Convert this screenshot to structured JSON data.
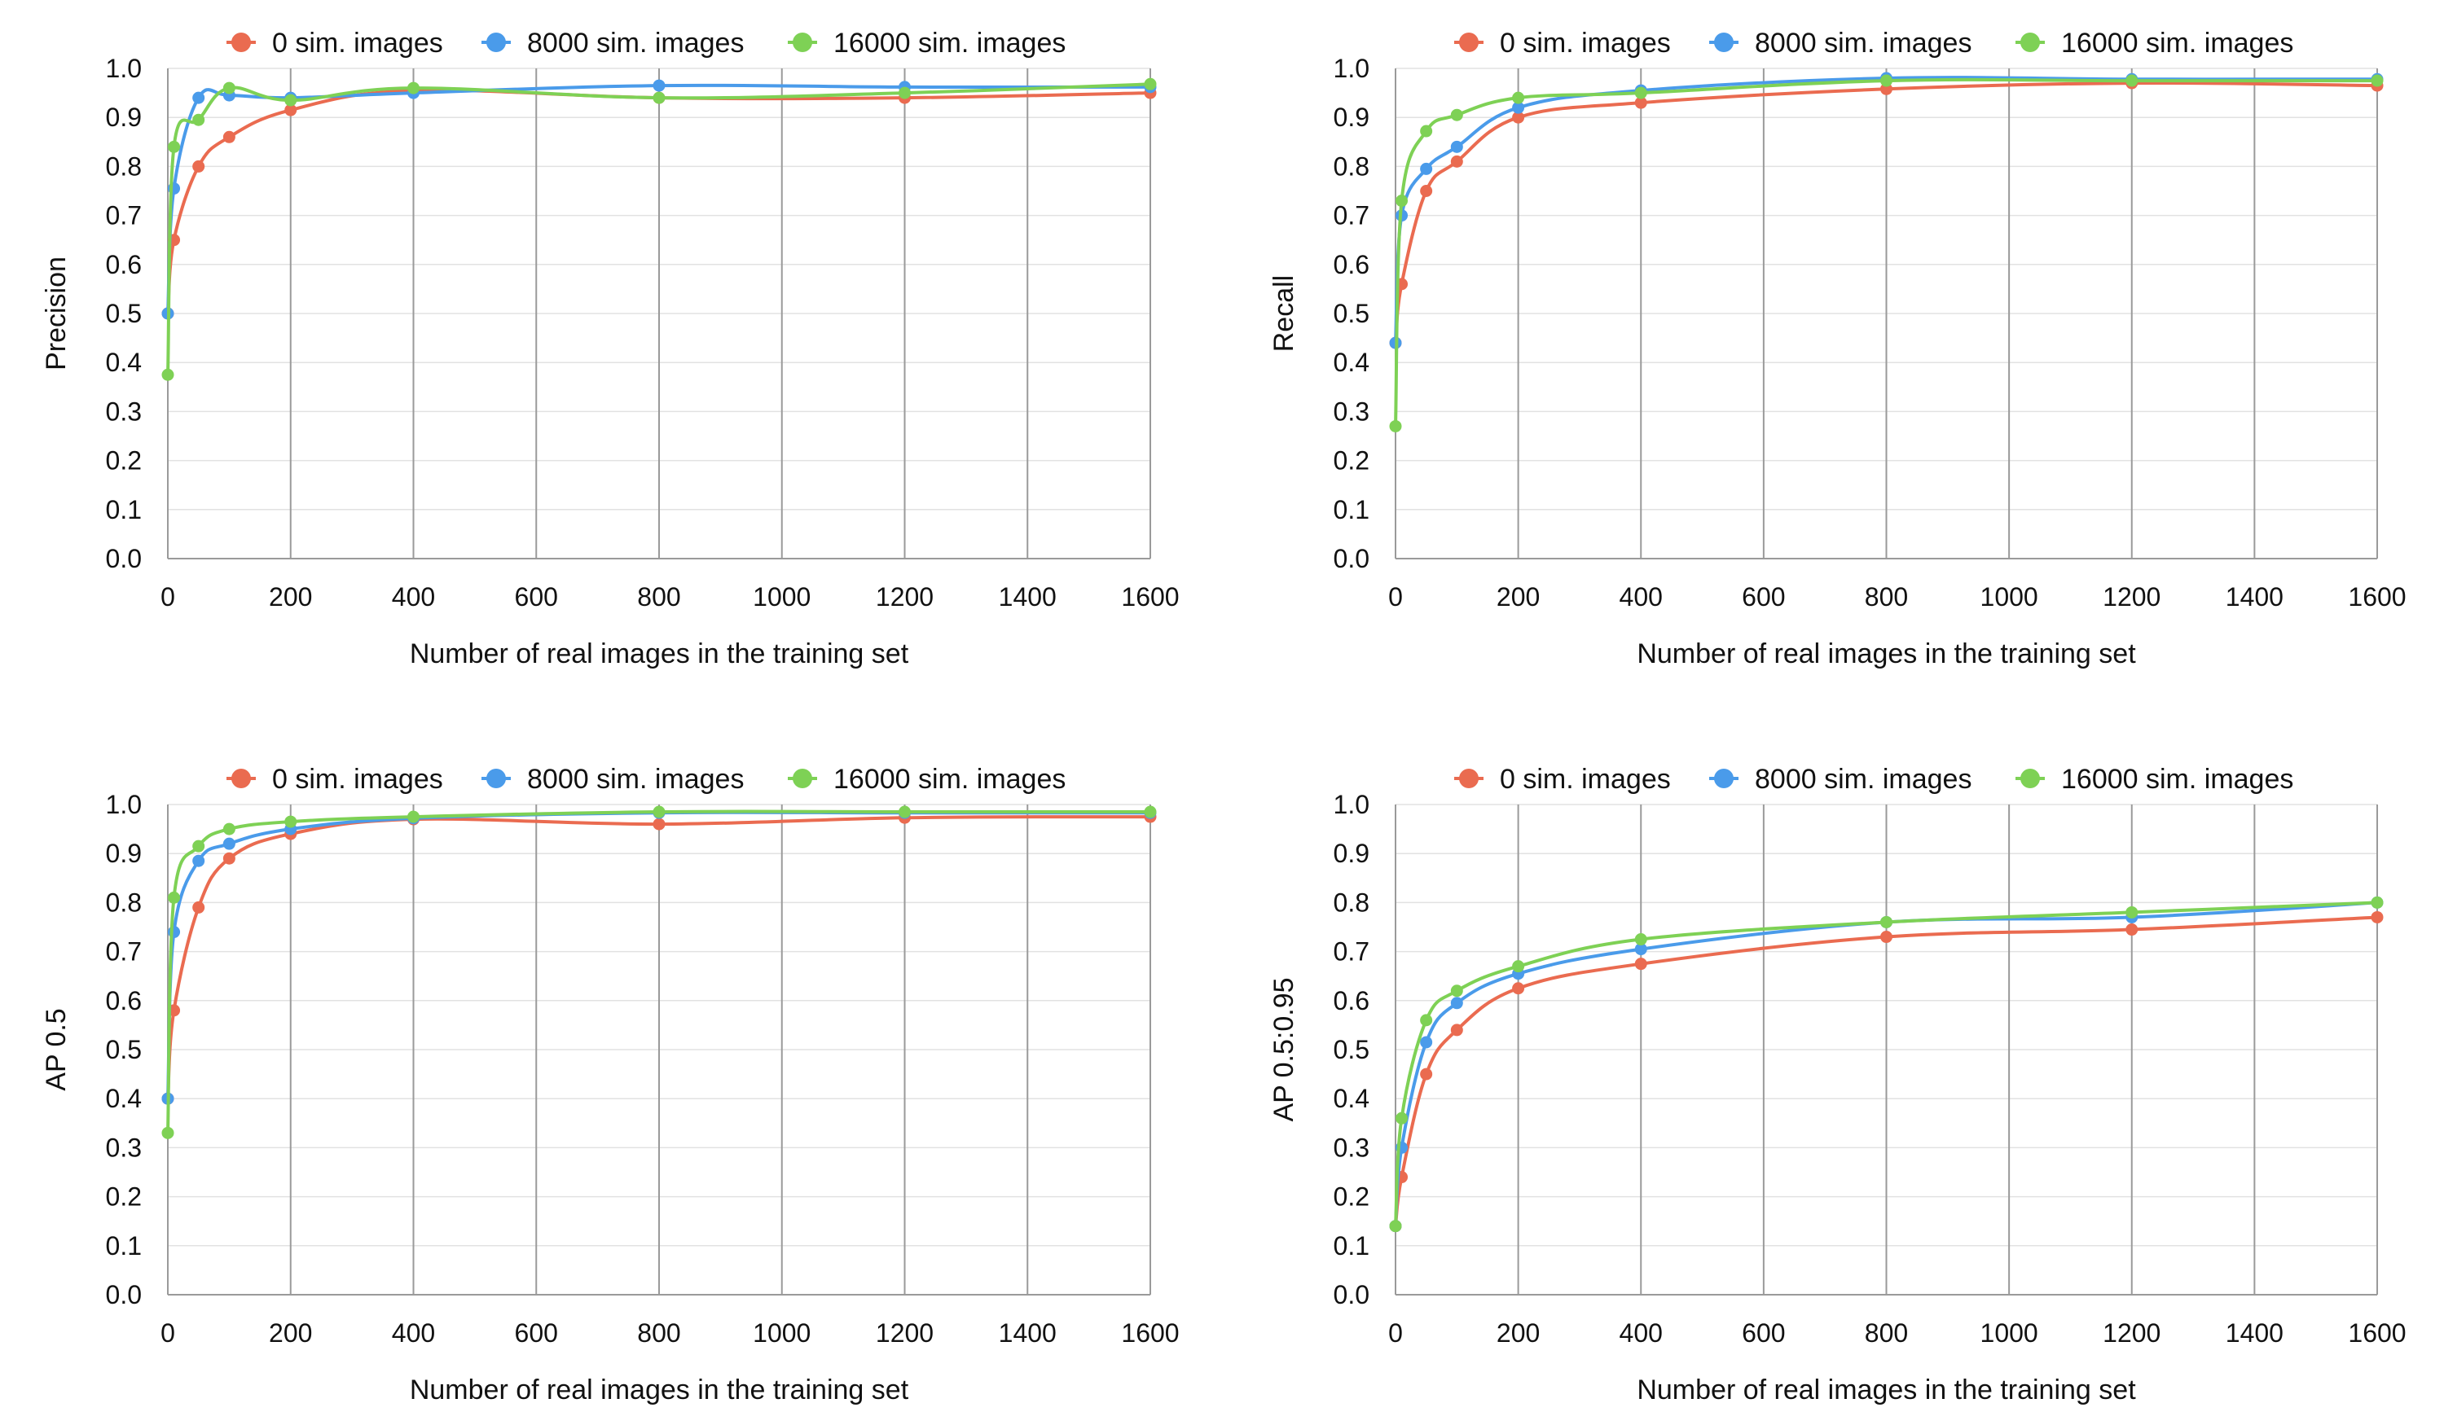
{
  "colors": {
    "0 sim. images": "#EA6B50",
    "8000 sim. images": "#4A9BEA",
    "16000 sim. images": "#7ED155",
    "vgrid": "#9a9a9a",
    "hgrid": "#e2e2e2"
  },
  "chart_data": [
    {
      "type": "line",
      "xlabel": "Number of real images in the training set",
      "ylabel": "Precision",
      "xlim": [
        0,
        1600
      ],
      "ylim": [
        0,
        1
      ],
      "xticks": [
        0,
        200,
        400,
        600,
        800,
        1000,
        1200,
        1400,
        1600
      ],
      "yticks": [
        "0.0",
        "0.1",
        "0.2",
        "0.3",
        "0.4",
        "0.5",
        "0.6",
        "0.7",
        "0.8",
        "0.9",
        "1.0"
      ],
      "grid": "vertical lines at x ticks, light horizontal lines",
      "legend": "top-center",
      "x": [
        0,
        10,
        50,
        100,
        200,
        400,
        800,
        1200,
        1600
      ],
      "series": [
        {
          "name": "0 sim. images",
          "values": [
            0.5,
            0.65,
            0.8,
            0.86,
            0.915,
            0.955,
            0.94,
            0.94,
            0.95
          ]
        },
        {
          "name": "8000 sim. images",
          "values": [
            0.5,
            0.755,
            0.94,
            0.945,
            0.94,
            0.95,
            0.965,
            0.962,
            0.962
          ]
        },
        {
          "name": "16000 sim. images",
          "values": [
            0.375,
            0.84,
            0.895,
            0.96,
            0.935,
            0.96,
            0.94,
            0.95,
            0.968
          ]
        }
      ]
    },
    {
      "type": "line",
      "xlabel": "Number of real images in the training set",
      "ylabel": "Recall",
      "xlim": [
        0,
        1600
      ],
      "ylim": [
        0,
        1
      ],
      "xticks": [
        0,
        200,
        400,
        600,
        800,
        1000,
        1200,
        1400,
        1600
      ],
      "yticks": [
        "0.0",
        "0.1",
        "0.2",
        "0.3",
        "0.4",
        "0.5",
        "0.6",
        "0.7",
        "0.8",
        "0.9",
        "1.0"
      ],
      "grid": "vertical lines at x ticks, light horizontal lines",
      "legend": "top-center",
      "x": [
        0,
        10,
        50,
        100,
        200,
        400,
        800,
        1200,
        1600
      ],
      "series": [
        {
          "name": "0 sim. images",
          "values": [
            0.44,
            0.56,
            0.75,
            0.81,
            0.9,
            0.93,
            0.958,
            0.97,
            0.965
          ]
        },
        {
          "name": "8000 sim. images",
          "values": [
            0.44,
            0.7,
            0.795,
            0.84,
            0.92,
            0.955,
            0.98,
            0.978,
            0.978
          ]
        },
        {
          "name": "16000 sim. images",
          "values": [
            0.27,
            0.73,
            0.872,
            0.905,
            0.94,
            0.95,
            0.975,
            0.975,
            0.975
          ]
        }
      ]
    },
    {
      "type": "line",
      "xlabel": "Number of real images in the training set",
      "ylabel": "AP 0.5",
      "xlim": [
        0,
        1600
      ],
      "ylim": [
        0,
        1
      ],
      "xticks": [
        0,
        200,
        400,
        600,
        800,
        1000,
        1200,
        1400,
        1600
      ],
      "yticks": [
        "0.0",
        "0.1",
        "0.2",
        "0.3",
        "0.4",
        "0.5",
        "0.6",
        "0.7",
        "0.8",
        "0.9",
        "1.0"
      ],
      "grid": "vertical lines at x ticks, light horizontal lines",
      "legend": "top-center",
      "x": [
        0,
        10,
        50,
        100,
        200,
        400,
        800,
        1200,
        1600
      ],
      "series": [
        {
          "name": "0 sim. images",
          "values": [
            0.4,
            0.58,
            0.79,
            0.89,
            0.94,
            0.97,
            0.96,
            0.973,
            0.975
          ]
        },
        {
          "name": "8000 sim. images",
          "values": [
            0.4,
            0.74,
            0.885,
            0.92,
            0.95,
            0.972,
            0.983,
            0.983,
            0.983
          ]
        },
        {
          "name": "16000 sim. images",
          "values": [
            0.33,
            0.81,
            0.915,
            0.95,
            0.965,
            0.975,
            0.985,
            0.985,
            0.985
          ]
        }
      ]
    },
    {
      "type": "line",
      "xlabel": "Number of real images in the training set",
      "ylabel": "AP 0.5:0.95",
      "xlim": [
        0,
        1600
      ],
      "ylim": [
        0,
        1
      ],
      "xticks": [
        0,
        200,
        400,
        600,
        800,
        1000,
        1200,
        1400,
        1600
      ],
      "yticks": [
        "0.0",
        "0.1",
        "0.2",
        "0.3",
        "0.4",
        "0.5",
        "0.6",
        "0.7",
        "0.8",
        "0.9",
        "1.0"
      ],
      "grid": "vertical lines at x ticks, light horizontal lines",
      "legend": "top-center",
      "x": [
        0,
        10,
        50,
        100,
        200,
        400,
        800,
        1200,
        1600
      ],
      "series": [
        {
          "name": "0 sim. images",
          "values": [
            0.14,
            0.24,
            0.45,
            0.54,
            0.625,
            0.675,
            0.73,
            0.745,
            0.77
          ]
        },
        {
          "name": "8000 sim. images",
          "values": [
            0.14,
            0.3,
            0.515,
            0.595,
            0.655,
            0.705,
            0.76,
            0.77,
            0.8
          ]
        },
        {
          "name": "16000 sim. images",
          "values": [
            0.14,
            0.36,
            0.56,
            0.62,
            0.67,
            0.725,
            0.76,
            0.78,
            0.8
          ]
        }
      ]
    }
  ]
}
